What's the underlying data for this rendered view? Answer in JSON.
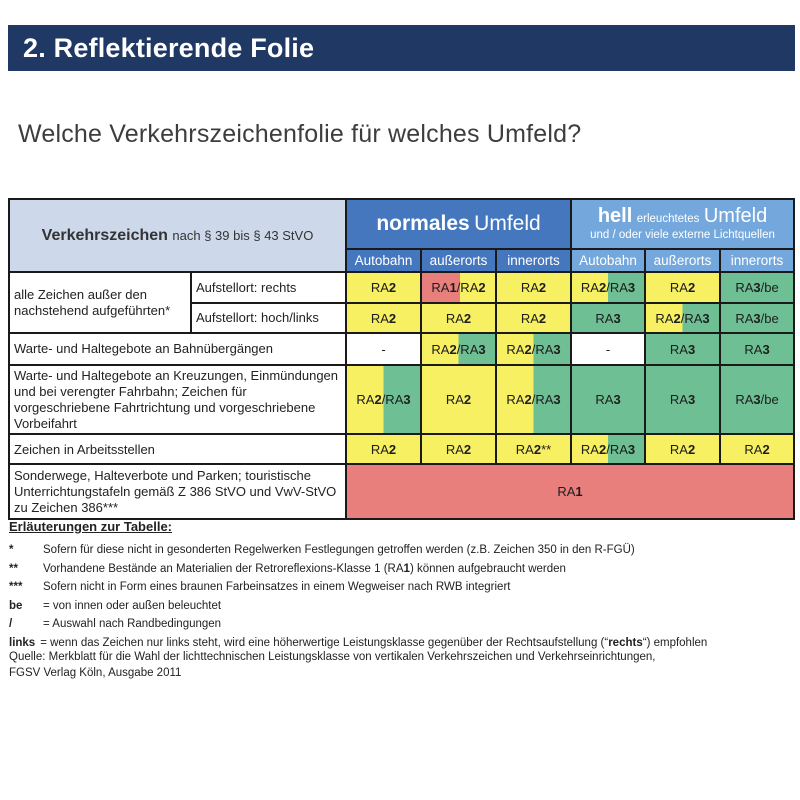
{
  "page": {
    "title_bar": "2. Reflektierende Folie",
    "heading": "Welche Verkehrszeichenfolie für welches Umfeld?"
  },
  "colors": {
    "navy_bar": "#1F3864",
    "blue_normal_group": "#4577BF",
    "blue_hell_group": "#74A8DD",
    "blue_corner_cell": "#CDD9EB",
    "cell_yellow_ra2": "#F7F063",
    "cell_green_ra3": "#6FBF95",
    "cell_red_ra1": "#E97F7D"
  },
  "table": {
    "corner": {
      "bold": "Verkehrszeichen",
      "rest": "nach § 39 bis § 43 StVO"
    },
    "group_normal": {
      "bold": "normales",
      "rest": "Umfeld"
    },
    "group_hell": {
      "bold": "hell",
      "mid": "erleuchtetes",
      "rest": "Umfeld",
      "sub": "und / oder viele externe Lichtquellen"
    },
    "cols": [
      "Autobahn",
      "außerorts",
      "innerorts",
      "Autobahn",
      "außerorts",
      "innerorts"
    ],
    "rows": [
      {
        "label": "alle Zeichen außer den nachstehend aufgeführten*",
        "sublabel": "Aufstellort: rechts",
        "cells": [
          {
            "v": "RA2",
            "c": "y"
          },
          {
            "v": "RA1/RA2",
            "c": "ry"
          },
          {
            "v": "RA2",
            "c": "y"
          },
          {
            "v": "RA2/RA3",
            "c": "yg"
          },
          {
            "v": "RA2",
            "c": "y"
          },
          {
            "v": "RA3/be",
            "c": "g"
          }
        ]
      },
      {
        "sublabel": "Aufstellort: hoch/links",
        "cells": [
          {
            "v": "RA2",
            "c": "y"
          },
          {
            "v": "RA2",
            "c": "y"
          },
          {
            "v": "RA2",
            "c": "y"
          },
          {
            "v": "RA3",
            "c": "g"
          },
          {
            "v": "RA2/RA3",
            "c": "yg"
          },
          {
            "v": "RA3/be",
            "c": "g"
          }
        ]
      },
      {
        "label": "Warte- und Haltegebote an Bahnübergängen",
        "cells": [
          {
            "v": "-",
            "c": "w"
          },
          {
            "v": "RA2/RA3",
            "c": "yg"
          },
          {
            "v": "RA2/RA3",
            "c": "yg"
          },
          {
            "v": "-",
            "c": "w"
          },
          {
            "v": "RA3",
            "c": "g"
          },
          {
            "v": "RA3",
            "c": "g"
          }
        ]
      },
      {
        "label": "Warte- und Haltegebote an Kreuzungen, Einmündungen und bei verengter Fahrbahn; Zeichen für vorgeschriebene Fahrtrichtung und vorgeschriebene Vorbeifahrt",
        "cells": [
          {
            "v": "RA2/RA3",
            "c": "yg"
          },
          {
            "v": "RA2",
            "c": "y"
          },
          {
            "v": "RA2/RA3",
            "c": "yg"
          },
          {
            "v": "RA3",
            "c": "g"
          },
          {
            "v": "RA3",
            "c": "g"
          },
          {
            "v": "RA3/be",
            "c": "g"
          }
        ]
      },
      {
        "label": "Zeichen in Arbeitsstellen",
        "cells": [
          {
            "v": "RA2",
            "c": "y"
          },
          {
            "v": "RA2",
            "c": "y"
          },
          {
            "v": "RA2**",
            "c": "y"
          },
          {
            "v": "RA2/RA3",
            "c": "yg"
          },
          {
            "v": "RA2",
            "c": "y"
          },
          {
            "v": "RA2",
            "c": "y"
          }
        ]
      },
      {
        "label": "Sonderwege, Halteverbote und Parken; touristische Unterrichtungstafeln gemäß Z 386 StVO und VwV-StVO zu Zeichen 386***",
        "cells": [
          {
            "v": "RA1",
            "c": "r"
          }
        ]
      }
    ]
  },
  "notes": {
    "heading": "Erläuterungen zur Tabelle:",
    "items": [
      {
        "marker": "*",
        "pre": "Sofern für diese nicht in gesonderten Regelwerken Festlegungen getroffen werden (z.B. Zeichen 350 in den R-FGÜ)",
        "bold": "",
        "post": ""
      },
      {
        "marker": "**",
        "pre": "Vorhandene Bestände an Materialien der Retroreflexions-Klasse 1 (RA",
        "bold": "1",
        "post": ") können aufgebraucht werden"
      },
      {
        "marker": "***",
        "pre": "Sofern nicht in Form eines braunen Farbeinsatzes in einem Wegweiser nach RWB integriert",
        "bold": "",
        "post": ""
      },
      {
        "marker": "be",
        "pre": "= von innen oder außen beleuchtet",
        "bold": "",
        "post": ""
      },
      {
        "marker": "/",
        "pre": "= Auswahl nach Randbedingungen",
        "bold": "",
        "post": ""
      },
      {
        "marker": "links",
        "pre": "= wenn das Zeichen nur links steht, wird eine höherwertige Leistungsklasse gegenüber der Rechtsaufstellung (“",
        "bold": "rechts",
        "post": "“) empfohlen"
      }
    ]
  },
  "source": {
    "line1": "Quelle: Merkblatt für die Wahl der lichttechnischen Leistungsklasse von vertikalen Verkehrszeichen und Verkehrseinrichtungen,",
    "line2": "FGSV Verlag Köln, Ausgabe 2011"
  }
}
